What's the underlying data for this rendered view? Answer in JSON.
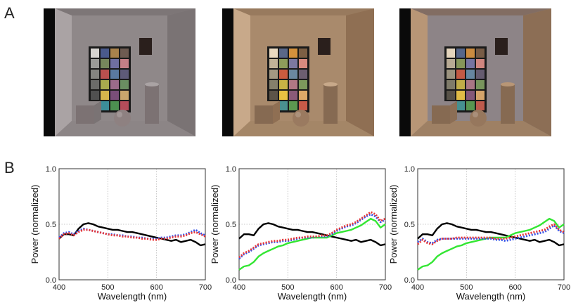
{
  "panel_labels": {
    "a": "A",
    "b": "B"
  },
  "scenes": [
    {
      "room_wall": "#8f8889",
      "room_side": "#7a7374",
      "room_side_light": "#aaa3a4",
      "room_floor": "#8c8586",
      "room_ceiling": "#7d7677",
      "object": "#7c7273",
      "sphere": "#8e8181",
      "checker": [
        "#d7d4d0",
        "#4a5a8c",
        "#a8824c",
        "#6e5b51",
        "#9b9b98",
        "#76865c",
        "#6f6fa0",
        "#c47f86",
        "#848480",
        "#b9504f",
        "#5a7aa0",
        "#5e5a78",
        "#6b6b69",
        "#a8aa4e",
        "#9b6b8a",
        "#6a8e62",
        "#505050",
        "#d6b64c",
        "#7a4e78",
        "#c9a56d",
        "#3a3a3a",
        "#3c8d9a",
        "#4c9050",
        "#b44c5a"
      ]
    },
    {
      "room_wall": "#a98a6c",
      "room_side": "#8f6f53",
      "room_side_light": "#c8a98a",
      "room_floor": "#a48667",
      "room_ceiling": "#987a5e",
      "object": "#866a52",
      "sphere": "#9a7a60",
      "checker": [
        "#eadac0",
        "#5a6888",
        "#d4913c",
        "#7d5f44",
        "#c2b397",
        "#8e9c5a",
        "#7c78a0",
        "#d88a7f",
        "#a49982",
        "#cc5c3f",
        "#6b88a0",
        "#6c5e70",
        "#85806b",
        "#c8b245",
        "#b07884",
        "#7c985c",
        "#5c5448",
        "#e8c042",
        "#8a5a78",
        "#dca868",
        "#403a30",
        "#4a9090",
        "#5c9850",
        "#c65a48"
      ]
    },
    {
      "room_wall": "#8d8487",
      "room_side": "#8c6e55",
      "room_side_light": "#b89676",
      "room_floor": "#9e8064",
      "room_ceiling": "#826d63",
      "object": "#866a52",
      "sphere": "#96775d",
      "checker": [
        "#e4d4bc",
        "#56668a",
        "#cc8c40",
        "#785c46",
        "#b8aa94",
        "#86965a",
        "#7674a0",
        "#d0867f",
        "#9c937f",
        "#c45a44",
        "#6686a0",
        "#665c70",
        "#7f7b69",
        "#c0ac48",
        "#a87684",
        "#78945c",
        "#585248",
        "#e0bc46",
        "#845878",
        "#d4a46a",
        "#3e3a32",
        "#469090",
        "#589650",
        "#be5a4c"
      ]
    }
  ],
  "chart_data": [
    {
      "type": "line",
      "xlabel": "Wavelength (nm)",
      "ylabel": "Power (normalized)",
      "xlim": [
        400,
        700
      ],
      "ylim": [
        0,
        1.0
      ],
      "xticks": [
        "400",
        "500",
        "600",
        "700"
      ],
      "yticks": [
        "0.0",
        "0.5",
        "1.0"
      ],
      "grid": true,
      "x": [
        400,
        410,
        420,
        430,
        440,
        450,
        460,
        470,
        480,
        490,
        500,
        510,
        520,
        530,
        540,
        550,
        560,
        570,
        580,
        590,
        600,
        610,
        620,
        630,
        640,
        650,
        660,
        670,
        680,
        690,
        700
      ],
      "series": [
        {
          "color": "#000000",
          "dash": "solid",
          "values": [
            0.37,
            0.41,
            0.41,
            0.4,
            0.46,
            0.5,
            0.51,
            0.5,
            0.48,
            0.47,
            0.46,
            0.45,
            0.45,
            0.44,
            0.43,
            0.43,
            0.42,
            0.41,
            0.4,
            0.39,
            0.38,
            0.37,
            0.36,
            0.35,
            0.36,
            0.34,
            0.35,
            0.36,
            0.34,
            0.31,
            0.32
          ]
        },
        {
          "color": "#3552e8",
          "dash": "dotted",
          "values": [
            0.38,
            0.42,
            0.43,
            0.41,
            0.44,
            0.46,
            0.45,
            0.44,
            0.43,
            0.42,
            0.41,
            0.41,
            0.4,
            0.4,
            0.39,
            0.39,
            0.38,
            0.38,
            0.37,
            0.37,
            0.37,
            0.38,
            0.38,
            0.39,
            0.4,
            0.4,
            0.41,
            0.43,
            0.45,
            0.42,
            0.4
          ]
        },
        {
          "color": "#e83535",
          "dash": "dotted",
          "values": [
            0.37,
            0.41,
            0.42,
            0.4,
            0.43,
            0.45,
            0.45,
            0.44,
            0.43,
            0.42,
            0.41,
            0.4,
            0.4,
            0.39,
            0.39,
            0.38,
            0.38,
            0.37,
            0.37,
            0.36,
            0.36,
            0.37,
            0.37,
            0.38,
            0.39,
            0.39,
            0.4,
            0.42,
            0.43,
            0.41,
            0.39
          ]
        }
      ]
    },
    {
      "type": "line",
      "xlabel": "Wavelength (nm)",
      "ylabel": "Power (normalized)",
      "xlim": [
        400,
        700
      ],
      "ylim": [
        0,
        1.0
      ],
      "xticks": [
        "400",
        "500",
        "600",
        "700"
      ],
      "yticks": [
        "0.0",
        "0.5",
        "1.0"
      ],
      "grid": true,
      "x": [
        400,
        410,
        420,
        430,
        440,
        450,
        460,
        470,
        480,
        490,
        500,
        510,
        520,
        530,
        540,
        550,
        560,
        570,
        580,
        590,
        600,
        610,
        620,
        630,
        640,
        650,
        660,
        670,
        680,
        690,
        700
      ],
      "series": [
        {
          "color": "#000000",
          "dash": "solid",
          "values": [
            0.37,
            0.41,
            0.41,
            0.4,
            0.46,
            0.5,
            0.51,
            0.5,
            0.48,
            0.47,
            0.46,
            0.45,
            0.45,
            0.44,
            0.43,
            0.43,
            0.42,
            0.41,
            0.4,
            0.39,
            0.38,
            0.37,
            0.36,
            0.35,
            0.36,
            0.34,
            0.35,
            0.36,
            0.34,
            0.31,
            0.32
          ]
        },
        {
          "color": "#33e633",
          "dash": "solid",
          "values": [
            0.09,
            0.12,
            0.13,
            0.16,
            0.21,
            0.24,
            0.26,
            0.28,
            0.3,
            0.31,
            0.33,
            0.34,
            0.35,
            0.36,
            0.37,
            0.38,
            0.38,
            0.38,
            0.38,
            0.4,
            0.42,
            0.43,
            0.44,
            0.45,
            0.47,
            0.49,
            0.52,
            0.55,
            0.53,
            0.47,
            0.5
          ]
        },
        {
          "color": "#3552e8",
          "dash": "dotted",
          "values": [
            0.19,
            0.23,
            0.25,
            0.28,
            0.31,
            0.32,
            0.33,
            0.34,
            0.34,
            0.35,
            0.35,
            0.36,
            0.37,
            0.38,
            0.38,
            0.38,
            0.39,
            0.39,
            0.39,
            0.41,
            0.44,
            0.46,
            0.48,
            0.49,
            0.51,
            0.54,
            0.57,
            0.59,
            0.57,
            0.52,
            0.54
          ]
        },
        {
          "color": "#e83535",
          "dash": "dotted",
          "values": [
            0.2,
            0.24,
            0.26,
            0.29,
            0.32,
            0.33,
            0.34,
            0.35,
            0.35,
            0.36,
            0.36,
            0.37,
            0.38,
            0.38,
            0.39,
            0.39,
            0.39,
            0.4,
            0.4,
            0.42,
            0.45,
            0.47,
            0.49,
            0.5,
            0.52,
            0.55,
            0.58,
            0.61,
            0.59,
            0.53,
            0.55
          ]
        }
      ]
    },
    {
      "type": "line",
      "xlabel": "Wavelength (nm)",
      "ylabel": "Power (normalized)",
      "xlim": [
        400,
        700
      ],
      "ylim": [
        0,
        1.0
      ],
      "xticks": [
        "400",
        "500",
        "600",
        "700"
      ],
      "yticks": [
        "0.0",
        "0.5",
        "1.0"
      ],
      "grid": true,
      "x": [
        400,
        410,
        420,
        430,
        440,
        450,
        460,
        470,
        480,
        490,
        500,
        510,
        520,
        530,
        540,
        550,
        560,
        570,
        580,
        590,
        600,
        610,
        620,
        630,
        640,
        650,
        660,
        670,
        680,
        690,
        700
      ],
      "series": [
        {
          "color": "#000000",
          "dash": "solid",
          "values": [
            0.37,
            0.41,
            0.41,
            0.4,
            0.46,
            0.5,
            0.51,
            0.5,
            0.48,
            0.47,
            0.46,
            0.45,
            0.45,
            0.44,
            0.43,
            0.43,
            0.42,
            0.41,
            0.4,
            0.39,
            0.38,
            0.37,
            0.36,
            0.35,
            0.36,
            0.34,
            0.35,
            0.36,
            0.34,
            0.31,
            0.32
          ]
        },
        {
          "color": "#33e633",
          "dash": "solid",
          "values": [
            0.09,
            0.12,
            0.13,
            0.16,
            0.21,
            0.24,
            0.26,
            0.28,
            0.3,
            0.31,
            0.33,
            0.34,
            0.35,
            0.36,
            0.37,
            0.38,
            0.38,
            0.38,
            0.38,
            0.4,
            0.42,
            0.43,
            0.44,
            0.45,
            0.47,
            0.49,
            0.52,
            0.55,
            0.53,
            0.47,
            0.5
          ]
        },
        {
          "color": "#3552e8",
          "dash": "dotted",
          "values": [
            0.34,
            0.37,
            0.34,
            0.33,
            0.36,
            0.37,
            0.37,
            0.37,
            0.37,
            0.37,
            0.37,
            0.37,
            0.37,
            0.37,
            0.37,
            0.37,
            0.36,
            0.36,
            0.35,
            0.36,
            0.37,
            0.38,
            0.39,
            0.4,
            0.41,
            0.42,
            0.43,
            0.46,
            0.49,
            0.44,
            0.42
          ]
        },
        {
          "color": "#e83535",
          "dash": "dotted",
          "values": [
            0.32,
            0.36,
            0.33,
            0.32,
            0.35,
            0.37,
            0.37,
            0.37,
            0.38,
            0.38,
            0.38,
            0.38,
            0.38,
            0.38,
            0.38,
            0.38,
            0.37,
            0.37,
            0.37,
            0.38,
            0.39,
            0.4,
            0.41,
            0.42,
            0.43,
            0.44,
            0.45,
            0.48,
            0.5,
            0.45,
            0.43
          ]
        }
      ]
    }
  ]
}
